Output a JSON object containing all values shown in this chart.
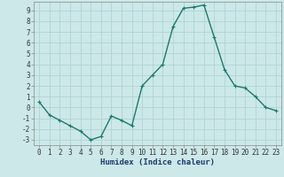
{
  "x": [
    0,
    1,
    2,
    3,
    4,
    5,
    6,
    7,
    8,
    9,
    10,
    11,
    12,
    13,
    14,
    15,
    16,
    17,
    18,
    19,
    20,
    21,
    22,
    23
  ],
  "y": [
    0.5,
    -0.7,
    -1.2,
    -1.7,
    -2.2,
    -3.0,
    -2.7,
    -0.8,
    -1.2,
    -1.7,
    2.0,
    3.0,
    4.0,
    7.5,
    9.2,
    9.3,
    9.5,
    6.5,
    3.5,
    2.0,
    1.8,
    1.0,
    0.0,
    -0.3
  ],
  "line_color": "#1a7a6e",
  "marker": "+",
  "marker_size": 3,
  "line_width": 1.0,
  "xlabel": "Humidex (Indice chaleur)",
  "xlim": [
    -0.5,
    23.5
  ],
  "ylim": [
    -3.5,
    9.8
  ],
  "yticks": [
    -3,
    -2,
    -1,
    0,
    1,
    2,
    3,
    4,
    5,
    6,
    7,
    8,
    9
  ],
  "xticks": [
    0,
    1,
    2,
    3,
    4,
    5,
    6,
    7,
    8,
    9,
    10,
    11,
    12,
    13,
    14,
    15,
    16,
    17,
    18,
    19,
    20,
    21,
    22,
    23
  ],
  "bg_color": "#cce8e8",
  "grid_color": "#b0d4d4",
  "tick_fontsize": 5.5,
  "label_fontsize": 6.5,
  "markeredgewidth": 0.8
}
